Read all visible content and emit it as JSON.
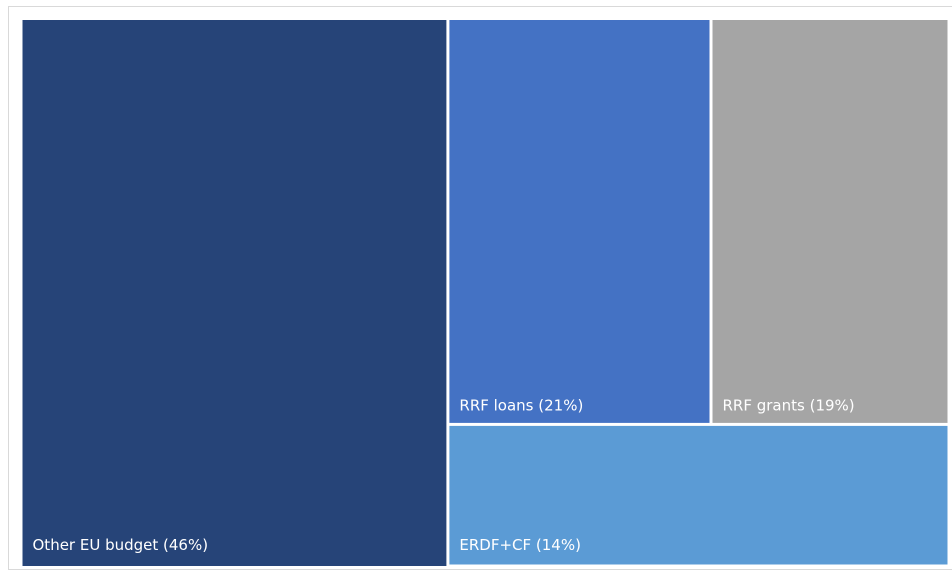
{
  "chart_data": {
    "type": "treemap",
    "title": "",
    "items": [
      {
        "name": "Other EU budget",
        "value": 46,
        "label": "Other EU budget (46%)",
        "color": "#264478"
      },
      {
        "name": "RRF loans",
        "value": 21,
        "label": "RRF loans (21%)",
        "color": "#4472C4"
      },
      {
        "name": "RRF grants",
        "value": 19,
        "label": "RRF grants (19%)",
        "color": "#A5A5A5"
      },
      {
        "name": "ERDF+CF",
        "value": 14,
        "label": "ERDF+CF (14%)",
        "color": "#5B9BD5"
      }
    ]
  }
}
